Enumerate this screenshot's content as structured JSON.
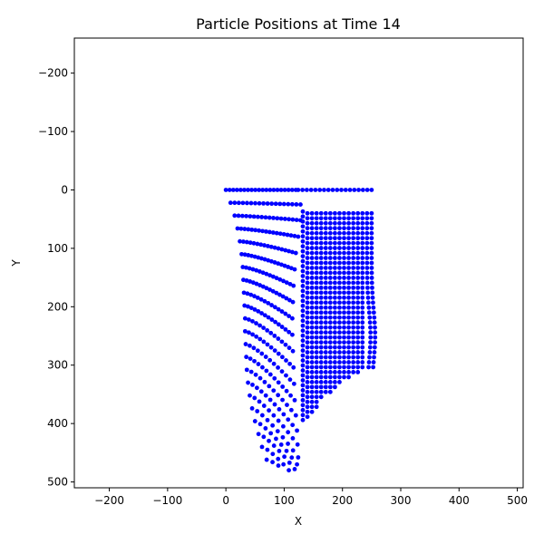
{
  "chart_data": {
    "type": "scatter",
    "title": "Particle Positions at Time 14",
    "xlabel": "X",
    "ylabel": "Y",
    "xlim": [
      -260,
      510
    ],
    "ylim": [
      510,
      -260
    ],
    "y_axis_inverted": true,
    "x_ticks": [
      "−200",
      "−100",
      "0",
      "100",
      "200",
      "300",
      "400",
      "500"
    ],
    "y_ticks": [
      "−200",
      "−100",
      "0",
      "100",
      "200",
      "300",
      "400",
      "500"
    ],
    "grid": false,
    "legend": "none",
    "point_color": "#0000ff",
    "point_groups": [
      {
        "note": "left fan of particle rows (curving down toward bottom point)",
        "rows": [
          {
            "y0": 0,
            "x0": 0,
            "x1": 120,
            "n": 20,
            "sag": 0
          },
          {
            "y0": 22,
            "x0": 8,
            "x1": 128,
            "n": 18,
            "sag": 3
          },
          {
            "y0": 44,
            "x0": 15,
            "x1": 128,
            "n": 18,
            "sag": 8
          },
          {
            "y0": 66,
            "x0": 20,
            "x1": 124,
            "n": 18,
            "sag": 14
          },
          {
            "y0": 88,
            "x0": 24,
            "x1": 120,
            "n": 17,
            "sag": 20
          },
          {
            "y0": 110,
            "x0": 27,
            "x1": 118,
            "n": 17,
            "sag": 26
          },
          {
            "y0": 132,
            "x0": 29,
            "x1": 116,
            "n": 16,
            "sag": 32
          },
          {
            "y0": 154,
            "x0": 30,
            "x1": 115,
            "n": 16,
            "sag": 38
          },
          {
            "y0": 176,
            "x0": 31,
            "x1": 114,
            "n": 15,
            "sag": 44
          },
          {
            "y0": 198,
            "x0": 32,
            "x1": 114,
            "n": 15,
            "sag": 50
          },
          {
            "y0": 220,
            "x0": 33,
            "x1": 115,
            "n": 14,
            "sag": 56
          },
          {
            "y0": 242,
            "x0": 33,
            "x1": 116,
            "n": 14,
            "sag": 62
          },
          {
            "y0": 264,
            "x0": 34,
            "x1": 117,
            "n": 13,
            "sag": 68
          },
          {
            "y0": 286,
            "x0": 35,
            "x1": 118,
            "n": 13,
            "sag": 74
          },
          {
            "y0": 308,
            "x0": 36,
            "x1": 120,
            "n": 12,
            "sag": 78
          },
          {
            "y0": 330,
            "x0": 38,
            "x1": 122,
            "n": 12,
            "sag": 82
          },
          {
            "y0": 352,
            "x0": 41,
            "x1": 123,
            "n": 11,
            "sag": 84
          },
          {
            "y0": 374,
            "x0": 45,
            "x1": 124,
            "n": 10,
            "sag": 84
          },
          {
            "y0": 396,
            "x0": 50,
            "x1": 122,
            "n": 9,
            "sag": 74
          },
          {
            "y0": 418,
            "x0": 56,
            "x1": 118,
            "n": 8,
            "sag": 60
          },
          {
            "y0": 440,
            "x0": 62,
            "x1": 108,
            "n": 6,
            "sag": 40
          },
          {
            "y0": 462,
            "x0": 70,
            "x1": 90,
            "n": 3,
            "sag": 10
          }
        ]
      },
      {
        "note": "top row right part",
        "rows": [
          {
            "y0": 0,
            "x0": 124,
            "x1": 250,
            "n": 18,
            "sag": 0
          }
        ]
      },
      {
        "note": "right dense block",
        "columns": {
          "x_start": 132,
          "x_end": 250,
          "count": 16
        },
        "y_top": 40,
        "y_bottom_left": 400,
        "y_bottom_right": 305,
        "row_spacing": 8.5
      }
    ]
  }
}
